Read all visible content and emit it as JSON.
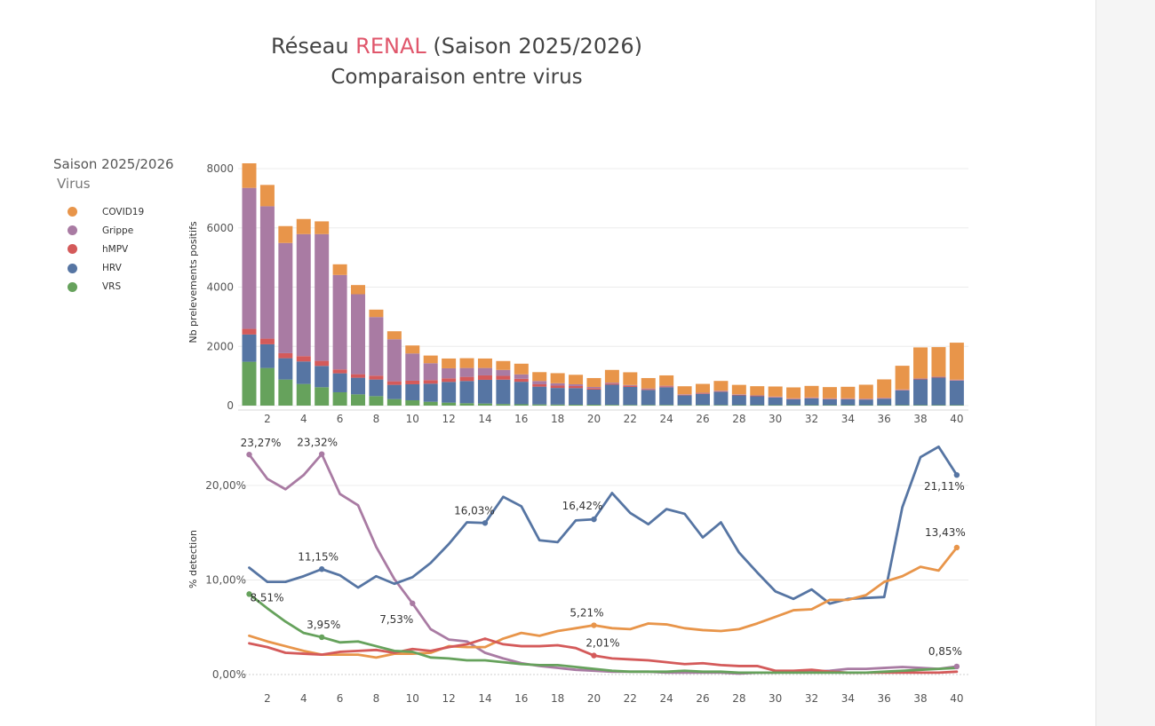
{
  "title": {
    "prefix": "Réseau ",
    "accent": "RENAL",
    "suffix": " (Saison 2025/2026)",
    "subtitle": "Comparaison entre virus",
    "accent_color": "#e0566b"
  },
  "legend": {
    "season": "Saison 2025/2026",
    "title": "Virus",
    "items": [
      {
        "label": "COVID19",
        "color": "#e8954a"
      },
      {
        "label": "Grippe",
        "color": "#a97ba3"
      },
      {
        "label": "hMPV",
        "color": "#d45a5a"
      },
      {
        "label": "HRV",
        "color": "#5675a3"
      },
      {
        "label": "VRS",
        "color": "#66a25c"
      }
    ]
  },
  "chart_data": [
    {
      "type": "bar",
      "stacked": true,
      "ylabel": "Nb prelevements positifs",
      "xlabel": "",
      "ylim": [
        0,
        8300
      ],
      "yticks": [
        0,
        2000,
        4000,
        6000,
        8000
      ],
      "xticks": [
        2,
        4,
        6,
        8,
        10,
        12,
        14,
        16,
        18,
        20,
        22,
        24,
        26,
        28,
        30,
        32,
        34,
        36,
        38,
        40
      ],
      "grid": true,
      "categories": [
        1,
        2,
        3,
        4,
        5,
        6,
        7,
        8,
        9,
        10,
        11,
        12,
        13,
        14,
        15,
        16,
        17,
        18,
        19,
        20,
        21,
        22,
        23,
        24,
        25,
        26,
        27,
        28,
        29,
        30,
        31,
        32,
        33,
        34,
        35,
        36,
        37,
        38,
        39,
        40
      ],
      "series": [
        {
          "name": "VRS",
          "color": "#66a25c",
          "values": [
            1480,
            1270,
            880,
            730,
            620,
            450,
            380,
            320,
            220,
            180,
            130,
            100,
            80,
            70,
            55,
            45,
            40,
            35,
            30,
            30,
            25,
            20,
            20,
            20,
            18,
            18,
            18,
            15,
            15,
            15,
            15,
            15,
            15,
            15,
            15,
            15,
            15,
            15,
            15,
            15
          ]
        },
        {
          "name": "HRV",
          "color": "#5675a3",
          "values": [
            920,
            800,
            720,
            760,
            720,
            640,
            560,
            560,
            480,
            540,
            610,
            700,
            750,
            800,
            820,
            760,
            600,
            560,
            560,
            510,
            680,
            610,
            510,
            600,
            330,
            380,
            450,
            330,
            300,
            260,
            200,
            230,
            200,
            200,
            190,
            220,
            500,
            870,
            930,
            830
          ]
        },
        {
          "name": "hMPV",
          "color": "#d45a5a",
          "values": [
            190,
            190,
            170,
            180,
            170,
            130,
            120,
            130,
            120,
            120,
            120,
            120,
            140,
            150,
            130,
            100,
            80,
            80,
            70,
            50,
            40,
            40,
            30,
            30,
            20,
            20,
            20,
            20,
            15,
            15,
            15,
            15,
            15,
            15,
            15,
            15,
            15,
            15,
            15,
            15
          ]
        },
        {
          "name": "Grippe",
          "color": "#a97ba3",
          "values": [
            4760,
            4470,
            3720,
            4120,
            4280,
            3190,
            2700,
            1980,
            1420,
            920,
            570,
            340,
            300,
            250,
            200,
            150,
            110,
            80,
            60,
            40,
            30,
            25,
            20,
            20,
            15,
            15,
            15,
            15,
            15,
            15,
            15,
            15,
            15,
            15,
            15,
            15,
            15,
            15,
            15,
            15
          ]
        },
        {
          "name": "COVID19",
          "color": "#e8954a",
          "values": [
            830,
            720,
            570,
            510,
            430,
            360,
            310,
            250,
            270,
            270,
            260,
            330,
            330,
            320,
            300,
            360,
            300,
            340,
            320,
            300,
            430,
            430,
            350,
            350,
            270,
            300,
            330,
            320,
            310,
            340,
            370,
            390,
            380,
            390,
            470,
            620,
            800,
            1050,
            1000,
            1250
          ]
        }
      ]
    },
    {
      "type": "line",
      "ylabel": "% detection",
      "xlabel": "",
      "ylim": [
        -0.5,
        24.5
      ],
      "yticks": [
        "0,00%",
        "10,00%",
        "20,00%"
      ],
      "ytick_values": [
        0,
        10,
        20
      ],
      "xticks": [
        2,
        4,
        6,
        8,
        10,
        12,
        14,
        16,
        18,
        20,
        22,
        24,
        26,
        28,
        30,
        32,
        34,
        36,
        38,
        40
      ],
      "grid": true,
      "x": [
        1,
        2,
        3,
        4,
        5,
        6,
        7,
        8,
        9,
        10,
        11,
        12,
        13,
        14,
        15,
        16,
        17,
        18,
        19,
        20,
        21,
        22,
        23,
        24,
        25,
        26,
        27,
        28,
        29,
        30,
        31,
        32,
        33,
        34,
        35,
        36,
        37,
        38,
        39,
        40
      ],
      "series": [
        {
          "name": "Grippe",
          "color": "#a97ba3",
          "values": [
            23.27,
            20.7,
            19.6,
            21.1,
            23.32,
            19.1,
            17.9,
            13.5,
            10.1,
            7.53,
            4.8,
            3.7,
            3.5,
            2.3,
            1.7,
            1.2,
            0.9,
            0.7,
            0.5,
            0.4,
            0.3,
            0.3,
            0.3,
            0.2,
            0.2,
            0.2,
            0.2,
            0.1,
            0.2,
            0.2,
            0.3,
            0.3,
            0.4,
            0.6,
            0.6,
            0.7,
            0.8,
            0.7,
            0.6,
            0.85
          ],
          "markers": [
            {
              "x": 1,
              "label": "23,27%"
            },
            {
              "x": 5,
              "label": "23,32%"
            },
            {
              "x": 10,
              "label": "7,53%"
            },
            {
              "x": 40,
              "label": "0,85%"
            }
          ]
        },
        {
          "name": "HRV",
          "color": "#5675a3",
          "values": [
            11.3,
            9.8,
            9.8,
            10.4,
            11.15,
            10.5,
            9.2,
            10.4,
            9.6,
            10.3,
            11.8,
            13.8,
            16.1,
            16.03,
            18.8,
            17.8,
            14.2,
            14.0,
            16.3,
            16.42,
            19.2,
            17.1,
            15.9,
            17.5,
            17.0,
            14.5,
            16.1,
            12.9,
            10.8,
            8.8,
            8.0,
            9.0,
            7.5,
            8.0,
            8.1,
            8.2,
            17.7,
            23.0,
            24.1,
            21.11
          ],
          "markers": [
            {
              "x": 5,
              "label": "11,15%"
            },
            {
              "x": 14,
              "label": "16,03%"
            },
            {
              "x": 20,
              "label": "16,42%"
            },
            {
              "x": 40,
              "label": "21,11%"
            }
          ]
        },
        {
          "name": "COVID19",
          "color": "#e8954a",
          "values": [
            4.1,
            3.5,
            3.0,
            2.5,
            2.1,
            2.1,
            2.1,
            1.8,
            2.2,
            2.2,
            2.3,
            3.0,
            2.9,
            2.9,
            3.8,
            4.4,
            4.1,
            4.6,
            4.9,
            5.21,
            4.9,
            4.8,
            5.4,
            5.3,
            4.9,
            4.7,
            4.6,
            4.8,
            5.4,
            6.1,
            6.8,
            6.9,
            7.9,
            7.9,
            8.4,
            9.8,
            10.4,
            11.4,
            11.0,
            13.43
          ],
          "markers": [
            {
              "x": 20,
              "label": "5,21%"
            },
            {
              "x": 40,
              "label": "13,43%"
            }
          ]
        },
        {
          "name": "hMPV",
          "color": "#d45a5a",
          "values": [
            3.3,
            2.9,
            2.3,
            2.2,
            2.1,
            2.4,
            2.5,
            2.6,
            2.3,
            2.7,
            2.5,
            2.9,
            3.2,
            3.8,
            3.2,
            3.0,
            3.0,
            3.1,
            2.8,
            2.01,
            1.7,
            1.6,
            1.5,
            1.3,
            1.1,
            1.2,
            1.0,
            0.9,
            0.9,
            0.4,
            0.4,
            0.5,
            0.3,
            0.2,
            0.2,
            0.2,
            0.2,
            0.2,
            0.2,
            0.3
          ],
          "markers": [
            {
              "x": 20,
              "label": "2,01%"
            }
          ]
        },
        {
          "name": "VRS",
          "color": "#66a25c",
          "values": [
            8.51,
            7.0,
            5.6,
            4.4,
            3.95,
            3.4,
            3.5,
            3.0,
            2.5,
            2.4,
            1.8,
            1.7,
            1.5,
            1.5,
            1.3,
            1.1,
            1.0,
            1.0,
            0.8,
            0.6,
            0.4,
            0.3,
            0.3,
            0.3,
            0.4,
            0.3,
            0.3,
            0.2,
            0.2,
            0.2,
            0.2,
            0.2,
            0.2,
            0.2,
            0.2,
            0.3,
            0.4,
            0.5,
            0.6,
            0.7
          ],
          "markers": [
            {
              "x": 1,
              "label": "8,51%"
            },
            {
              "x": 5,
              "label": "3,95%"
            }
          ]
        }
      ]
    }
  ]
}
